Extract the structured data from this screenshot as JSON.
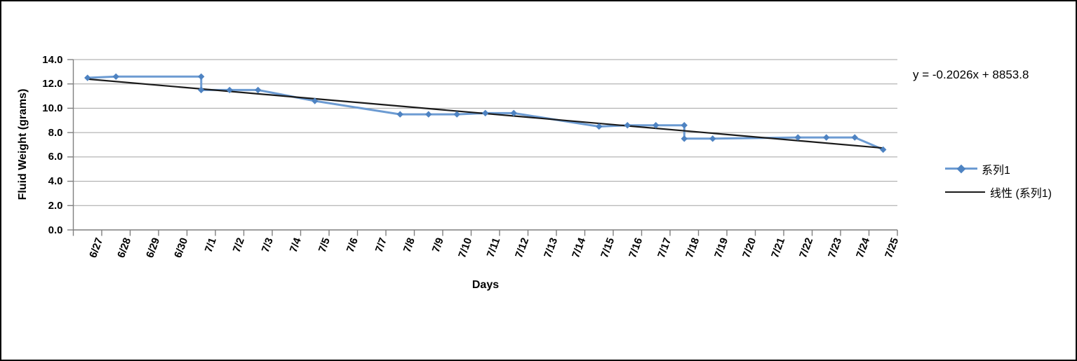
{
  "window": {
    "background": "#ffffff",
    "border_color": "#000000"
  },
  "chart_data": {
    "type": "line",
    "title": "",
    "xlabel": "Days",
    "ylabel": "Fluid Weight (grams)",
    "ylim": [
      0,
      14
    ],
    "ytick_step": 2,
    "grid": {
      "show": true,
      "color": "#A3A3A3"
    },
    "axis_color": "#7F7F7F",
    "legend_position": "right",
    "categories": [
      "6/27",
      "6/28",
      "6/29",
      "6/30",
      "7/1",
      "7/2",
      "7/3",
      "7/4",
      "7/5",
      "7/6",
      "7/7",
      "7/8",
      "7/9",
      "7/10",
      "7/11",
      "7/12",
      "7/13",
      "7/14",
      "7/15",
      "7/16",
      "7/17",
      "7/18",
      "7/19",
      "7/20",
      "7/21",
      "7/22",
      "7/23",
      "7/24",
      "7/25"
    ],
    "series": [
      {
        "name": "系列1",
        "marker": "diamond",
        "line_color": "#6C9BD2",
        "marker_color": "#4E83C2",
        "points": [
          [
            "6/27",
            12.5
          ],
          [
            "6/28",
            12.6
          ],
          [
            "7/1",
            12.6
          ],
          [
            "7/1",
            11.5
          ],
          [
            "7/2",
            11.5
          ],
          [
            "7/3",
            11.5
          ],
          [
            "7/5",
            10.6
          ],
          [
            "7/8",
            9.5
          ],
          [
            "7/9",
            9.5
          ],
          [
            "7/10",
            9.5
          ],
          [
            "7/11",
            9.6
          ],
          [
            "7/12",
            9.6
          ],
          [
            "7/15",
            8.5
          ],
          [
            "7/16",
            8.6
          ],
          [
            "7/17",
            8.6
          ],
          [
            "7/18",
            8.6
          ],
          [
            "7/18",
            7.5
          ],
          [
            "7/19",
            7.5
          ],
          [
            "7/22",
            7.6
          ],
          [
            "7/23",
            7.6
          ],
          [
            "7/24",
            7.6
          ],
          [
            "7/25",
            6.6
          ]
        ]
      }
    ],
    "trendline": {
      "name": "线性 (系列1)",
      "color": "#1A1A1A",
      "equation_label": "y = -0.2026x + 8853.8",
      "start_category": "6/27",
      "end_category": "7/25",
      "start_value": 12.4,
      "end_value": 6.73
    }
  }
}
